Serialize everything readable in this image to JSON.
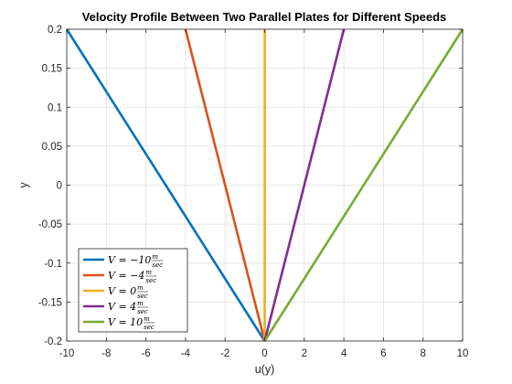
{
  "chart_data": {
    "type": "line",
    "title": "Velocity Profile Between Two Parallel Plates for Different Speeds",
    "xlabel": "u(y)",
    "ylabel": "y",
    "xlim": [
      -10,
      10
    ],
    "ylim": [
      -0.2,
      0.2
    ],
    "xticks": [
      "-10",
      "-8",
      "-6",
      "-4",
      "-2",
      "0",
      "2",
      "4",
      "6",
      "8",
      "10"
    ],
    "yticks": [
      "-0.2",
      "-0.15",
      "-0.1",
      "-0.05",
      "0",
      "0.05",
      "0.1",
      "0.15",
      "0.2"
    ],
    "grid": true,
    "legend_position": "bottom-left",
    "series": [
      {
        "name": "V = -10 m/sec",
        "legend_value": "−10",
        "color": "#0072BD",
        "x": [
          0,
          -10
        ],
        "y": [
          -0.2,
          0.2
        ]
      },
      {
        "name": "V = -4 m/sec",
        "legend_value": "−4",
        "color": "#D95319",
        "x": [
          0,
          -4
        ],
        "y": [
          -0.2,
          0.2
        ]
      },
      {
        "name": "V = 0 m/sec",
        "legend_value": "0",
        "color": "#EDB120",
        "x": [
          0,
          0
        ],
        "y": [
          -0.2,
          0.2
        ]
      },
      {
        "name": "V = 4 m/sec",
        "legend_value": "4",
        "color": "#7E2F8E",
        "x": [
          0,
          4
        ],
        "y": [
          -0.2,
          0.2
        ]
      },
      {
        "name": "V = 10 m/sec",
        "legend_value": "10",
        "color": "#77AC30",
        "x": [
          0,
          10
        ],
        "y": [
          -0.2,
          0.2
        ]
      }
    ]
  }
}
